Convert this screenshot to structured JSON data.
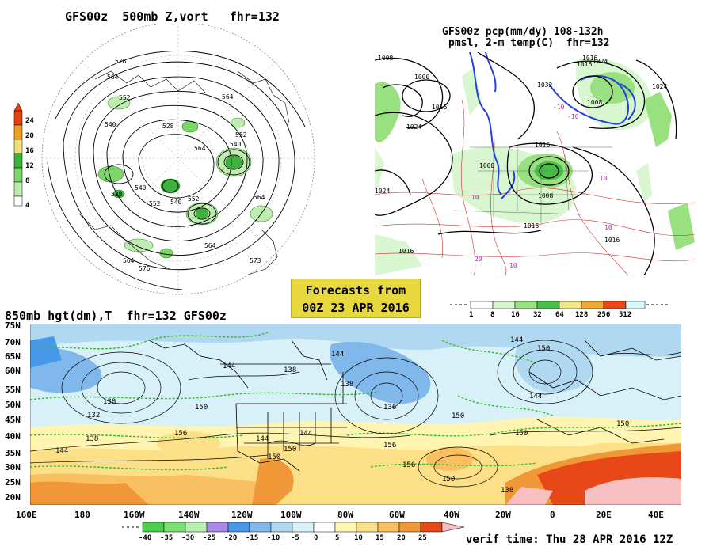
{
  "panels": {
    "polar": {
      "title": "GFS00z  500mb Z,vort   fhr=132",
      "colorbar_labels": [
        "24",
        "20",
        "16",
        "12",
        "8",
        "4"
      ],
      "contour_labels": [
        "576",
        "564",
        "552",
        "540",
        "528",
        "564",
        "552",
        "540",
        "564",
        "528",
        "540",
        "540",
        "552",
        "552",
        "564",
        "573",
        "564",
        "564",
        "576",
        "576"
      ]
    },
    "precip": {
      "title_line1": "GFS00z pcp(mm/dy) 108-132h",
      "title_line2": "pmsl, 2-m temp(C)  fhr=132",
      "colorbar_labels": [
        "1",
        "8",
        "16",
        "32",
        "64",
        "128",
        "256",
        "512"
      ],
      "isobar_labels": [
        "1008",
        "1000",
        "1016",
        "1024",
        "1024",
        "1016",
        "1008",
        "1016",
        "1008",
        "1016",
        "1024",
        "1016",
        "1032",
        "1024",
        "1016",
        "1008",
        "1016"
      ],
      "temp_labels": [
        "-10",
        "-10",
        "10",
        "10",
        "10",
        "10",
        "20"
      ]
    },
    "main": {
      "title": "850mb hgt(dm),T  fhr=132 GFS00z",
      "lat_labels": [
        "75N",
        "70N",
        "65N",
        "60N",
        "55N",
        "50N",
        "45N",
        "40N",
        "35N",
        "30N",
        "25N",
        "20N"
      ],
      "lon_labels": [
        "160E",
        "180",
        "160W",
        "140W",
        "120W",
        "100W",
        "80W",
        "60W",
        "40W",
        "20W",
        "0",
        "20E",
        "40E"
      ],
      "contour_labels": [
        "144",
        "138",
        "132",
        "138",
        "144",
        "150",
        "156",
        "144",
        "150",
        "144",
        "138",
        "136",
        "144",
        "150",
        "156",
        "150",
        "144",
        "150",
        "138",
        "150",
        "150",
        "156",
        "144",
        "150",
        "138"
      ],
      "colorbar_labels": [
        "-40",
        "-35",
        "-30",
        "-25",
        "-20",
        "-15",
        "-10",
        "-5",
        "0",
        "5",
        "10",
        "15",
        "20",
        "25"
      ]
    }
  },
  "banner": {
    "line1": "Forecasts from",
    "line2": "00Z 23 APR 2016"
  },
  "verif_time": "verif time: Thu 28 APR 2016 12Z",
  "colors": {
    "vort_scale": [
      "#ffffff",
      "#bfecb0",
      "#7ed56a",
      "#3cb33c",
      "#f3e07a",
      "#f0a020",
      "#e84010"
    ],
    "precip_scale": [
      "#ffffff",
      "#d8f6d0",
      "#98e080",
      "#48c048",
      "#f4e48c",
      "#f0a838",
      "#e84818",
      "#d8f8f8"
    ],
    "temp_scale": [
      "#48d048",
      "#78e070",
      "#b8f0b0",
      "#a888e8",
      "#4898e8",
      "#80b8ec",
      "#b0d8f0",
      "#d8f0f8",
      "#ffffff",
      "#fff4b0",
      "#fce088",
      "#f8c060",
      "#f09838",
      "#e84818",
      "#f8c0c0"
    ],
    "border_color": "#000000",
    "coast_color": "#2c8c1c",
    "isotherm_color": "#30c030"
  }
}
